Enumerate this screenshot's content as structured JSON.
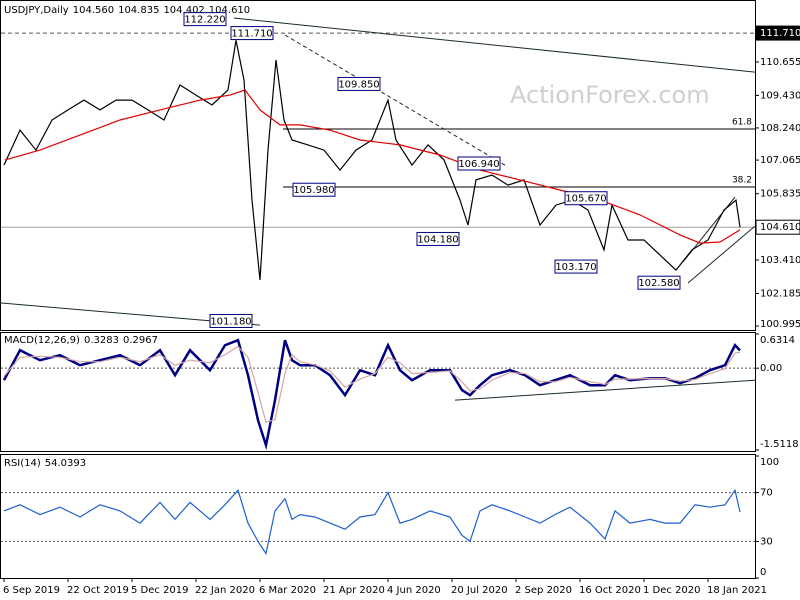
{
  "chart_data": [
    {
      "type": "line",
      "title": "USDJPY,Daily",
      "quote": [
        {
          "value": 104.56,
          "label": "104.560"
        },
        {
          "value": 104.835,
          "label": "104.835"
        },
        {
          "value": 104.402,
          "label": "104.402"
        },
        {
          "value": 104.61,
          "label": "104.610"
        }
      ],
      "watermark": "ActionForex.com",
      "xlim": [
        -2,
        375.5
      ],
      "ylim": [
        100.85,
        112.92
      ],
      "yticks": [
        {
          "value": 111.71,
          "label": "111.710"
        },
        110.655,
        {
          "value": 109.43,
          "label": "109.430"
        },
        {
          "value": 108.24,
          "label": "108.240"
        },
        107.065,
        105.835,
        {
          "value": 104.61,
          "label": "104.610"
        },
        {
          "value": 103.41,
          "label": "103.410"
        },
        102.185,
        100.995
      ],
      "series": [
        {
          "color": "#000000",
          "x": [
            0,
            8,
            16,
            24,
            32,
            40,
            48,
            56,
            64,
            72,
            80,
            88,
            96,
            104,
            112,
            116,
            120,
            124,
            128,
            132,
            136,
            140,
            144,
            152,
            160,
            168,
            176,
            184,
            192,
            196,
            204,
            212,
            220,
            228,
            232,
            236,
            244,
            252,
            260,
            268,
            276,
            284,
            292,
            300,
            304,
            312,
            320,
            328,
            336,
            344,
            352,
            360,
            366,
            368
          ],
          "values": [
            106.88,
            108.16,
            107.43,
            108.53,
            108.9,
            109.26,
            108.9,
            109.26,
            109.26,
            108.9,
            108.53,
            109.81,
            109.44,
            109.08,
            109.63,
            111.45,
            109.99,
            105.6,
            102.68,
            107.43,
            110.72,
            108.53,
            107.8,
            107.62,
            107.43,
            106.7,
            107.43,
            107.8,
            109.26,
            107.8,
            106.88,
            107.62,
            107.07,
            105.6,
            104.69,
            106.34,
            106.52,
            106.15,
            106.34,
            104.69,
            105.42,
            105.6,
            105.24,
            103.78,
            105.42,
            104.14,
            104.14,
            103.59,
            103.04,
            103.78,
            104.14,
            105.24,
            105.6,
            104.61
          ]
        },
        {
          "color": "#e00000",
          "x": [
            0.5,
            18,
            38,
            58,
            78,
            98,
            113,
            120.5,
            128,
            138,
            148,
            163,
            178,
            198,
            218,
            238,
            258,
            278,
            298,
            318,
            338,
            348,
            358,
            368
          ],
          "values": [
            107.07,
            107.43,
            107.98,
            108.53,
            108.9,
            109.26,
            109.44,
            109.63,
            108.9,
            108.35,
            108.35,
            108.16,
            107.8,
            107.62,
            107.25,
            106.7,
            106.34,
            105.97,
            105.6,
            105.06,
            104.33,
            104.03,
            104.07,
            104.51
          ]
        }
      ],
      "hlines": [
        {
          "value": 111.71,
          "style": "dashed"
        },
        {
          "value": 104.61,
          "style": "solid"
        }
      ],
      "levels": [
        {
          "value": 108.2,
          "label": "61.8",
          "x": 139.5
        },
        {
          "value": 106.08,
          "label": "38.2",
          "x": 139.5
        }
      ],
      "trendlines": [
        {
          "x": [
            115,
            375.5
          ],
          "y": [
            112.26,
            110.28
          ],
          "style": "solid"
        },
        {
          "x": [
            -2,
            128
          ],
          "y": [
            101.84,
            101.03
          ],
          "style": "solid"
        },
        {
          "x": [
            140.5,
            250.5
          ],
          "y": [
            111.64,
            106.88
          ],
          "style": "dashed"
        },
        {
          "x": [
            342,
            375.5
          ],
          "y": [
            102.57,
            104.65
          ],
          "style": "solid"
        },
        {
          "x": [
            339.5,
            365.5
          ],
          "y": [
            103.34,
            105.71
          ],
          "style": "solid"
        }
      ],
      "pivots": [
        {
          "x": 100.5,
          "value": 112.22,
          "label": "112.220"
        },
        {
          "x": 124,
          "value": 111.71,
          "label": "111.710"
        },
        {
          "x": 177.5,
          "value": 109.85,
          "label": "109.850"
        },
        {
          "x": 237.5,
          "value": 106.94,
          "label": "106.940"
        },
        {
          "x": 155,
          "value": 105.98,
          "label": "105.980"
        },
        {
          "x": 291,
          "value": 105.67,
          "label": "105.670"
        },
        {
          "x": 217,
          "value": 104.18,
          "label": "104.180"
        },
        {
          "x": 286,
          "value": 103.17,
          "label": "103.170"
        },
        {
          "x": 327.5,
          "value": 102.58,
          "label": "102.580"
        },
        {
          "x": 113.5,
          "value": 101.18,
          "label": "101.180"
        }
      ]
    },
    {
      "type": "line",
      "title": "MACD(12,26,9)",
      "readout": [
        0.3283,
        0.2967
      ],
      "xlim": [
        -2,
        375.5
      ],
      "ylim": [
        -1.5118,
        0.6314
      ],
      "yticks": [
        0.6314,
        {
          "value": 0,
          "label": "0.00"
        },
        -1.5118
      ],
      "x": [
        0,
        8,
        18,
        28,
        38,
        48,
        58,
        68,
        78,
        85.5,
        93,
        103,
        110.5,
        117,
        122,
        127,
        131,
        135.5,
        140.5,
        144,
        148,
        155.5,
        163,
        170.5,
        178,
        185.5,
        192,
        198,
        204,
        213,
        223,
        229,
        233,
        238,
        244,
        253,
        260.5,
        268,
        275.5,
        283,
        293,
        300.5,
        305.5,
        313,
        323,
        330.5,
        338,
        345.5,
        353,
        360.5,
        365.5,
        368
      ],
      "series": [
        {
          "color": "#000080",
          "values": [
            -0.222,
            0.333,
            0.148,
            0.24,
            0.055,
            0.148,
            0.24,
            0.055,
            0.333,
            -0.129,
            0.333,
            -0.037,
            0.425,
            0.517,
            -0.129,
            -0.961,
            -1.423,
            -0.591,
            0.517,
            0.148,
            0.055,
            0.055,
            -0.129,
            -0.499,
            -0.037,
            -0.129,
            0.425,
            -0.037,
            -0.222,
            -0.037,
            -0.037,
            -0.406,
            -0.499,
            -0.314,
            -0.129,
            -0.037,
            -0.129,
            -0.314,
            -0.222,
            -0.129,
            -0.314,
            -0.314,
            -0.129,
            -0.222,
            -0.185,
            -0.185,
            -0.277,
            -0.185,
            -0.037,
            0.055,
            0.425,
            0.3283
          ]
        },
        {
          "color": "#d4a6a6",
          "values": [
            -0.15,
            0.2,
            0.22,
            0.2,
            0.12,
            0.12,
            0.2,
            0.12,
            0.25,
            0.05,
            0.15,
            0.1,
            0.25,
            0.4,
            0.2,
            -0.45,
            -1.0,
            -0.95,
            -0.1,
            0.25,
            0.12,
            0.06,
            -0.05,
            -0.35,
            -0.2,
            -0.1,
            0.2,
            0.1,
            -0.1,
            -0.08,
            -0.05,
            -0.25,
            -0.42,
            -0.38,
            -0.22,
            -0.08,
            -0.1,
            -0.25,
            -0.25,
            -0.17,
            -0.25,
            -0.3,
            -0.2,
            -0.2,
            -0.19,
            -0.19,
            -0.24,
            -0.21,
            -0.1,
            -0.01,
            0.28,
            0.2967
          ]
        }
      ],
      "hlines": [
        {
          "value": 0,
          "style": "dotted"
        }
      ],
      "trendlines": [
        {
          "x": [
            225.5,
            375.5
          ],
          "y": [
            -0.591,
            -0.222
          ],
          "style": "solid"
        }
      ]
    },
    {
      "type": "line",
      "title": "RSI(14)",
      "readout": [
        54.0393
      ],
      "xlim": [
        -2,
        375.5
      ],
      "ylim": [
        0,
        100
      ],
      "yticks": [
        100,
        70,
        30,
        0
      ],
      "x": [
        0,
        8,
        18,
        28,
        38,
        48,
        58,
        68,
        78,
        85.5,
        93,
        103,
        110.5,
        117,
        122,
        127,
        131,
        135.5,
        140.5,
        144,
        148,
        155.5,
        163,
        170.5,
        178,
        185.5,
        192,
        198,
        204,
        213,
        223,
        229,
        233,
        238,
        244,
        253,
        260.5,
        268,
        275.5,
        283,
        293,
        300.5,
        305.5,
        313,
        323,
        330.5,
        338,
        345.5,
        353,
        360.5,
        365.5,
        368
      ],
      "series": [
        {
          "color": "#1e5fd0",
          "values": [
            55,
            60,
            52,
            58,
            50,
            60,
            55,
            45,
            62,
            48,
            62,
            48,
            60,
            72,
            45,
            30,
            20,
            55,
            65,
            48,
            52,
            50,
            45,
            40,
            50,
            52,
            70,
            45,
            48,
            55,
            50,
            35,
            30,
            55,
            60,
            55,
            50,
            45,
            52,
            58,
            45,
            32,
            55,
            45,
            48,
            45,
            45,
            60,
            58,
            60,
            72,
            54.0393
          ]
        }
      ],
      "hlines": [
        {
          "value": 70,
          "style": "dotted"
        },
        {
          "value": 30,
          "style": "dotted"
        }
      ],
      "xticks": [
        {
          "value": 0,
          "label": "6 Sep 2019"
        },
        {
          "value": 32,
          "label": "22 Oct 2019"
        },
        {
          "value": 64,
          "label": "5 Dec 2019"
        },
        {
          "value": 96,
          "label": "22 Jan 2020"
        },
        {
          "value": 128,
          "label": "6 Mar 2020"
        },
        {
          "value": 160,
          "label": "21 Apr 2020"
        },
        {
          "value": 192,
          "label": "4 Jun 2020"
        },
        {
          "value": 224,
          "label": "20 Jul 2020"
        },
        {
          "value": 256,
          "label": "2 Sep 2020"
        },
        {
          "value": 288,
          "label": "16 Oct 2020"
        },
        {
          "value": 320,
          "label": "1 Dec 2020"
        },
        {
          "value": 352,
          "label": "18 Jan 2021"
        }
      ]
    }
  ]
}
